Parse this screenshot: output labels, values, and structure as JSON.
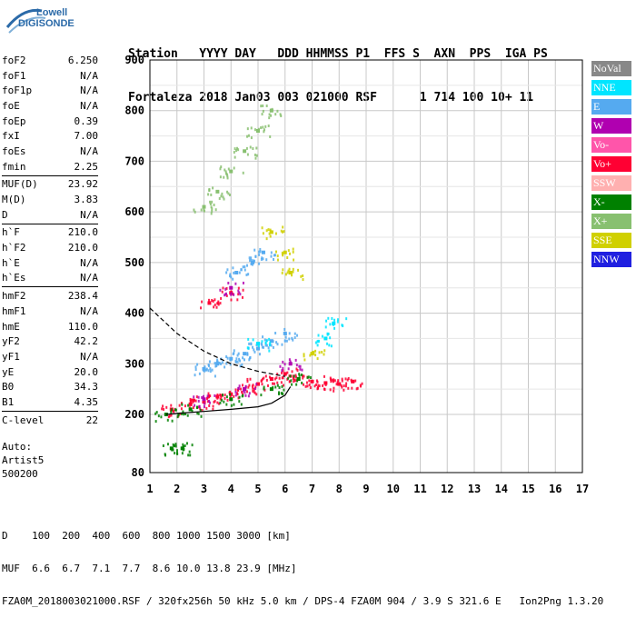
{
  "logo": {
    "line1": "Lowell",
    "line2": "DIGISONDE"
  },
  "header": {
    "line1": "Station   YYYY DAY   DDD HHMMSS P1  FFS S  AXN  PPS  IGA PS",
    "line2": "Fortaleza 2018 Jan03 003 021000 RSF      1 714 100 10+ 11"
  },
  "params": [
    {
      "label": "foF2",
      "value": "6.250"
    },
    {
      "label": "foF1",
      "value": "N/A"
    },
    {
      "label": "foF1p",
      "value": "N/A"
    },
    {
      "label": "foE",
      "value": "N/A"
    },
    {
      "label": "foEp",
      "value": "0.39"
    },
    {
      "label": "fxI",
      "value": "7.00"
    },
    {
      "label": "foEs",
      "value": "N/A"
    },
    {
      "label": "fmin",
      "value": "2.25"
    },
    {
      "sep": true
    },
    {
      "label": "MUF(D)",
      "value": "23.92"
    },
    {
      "label": "M(D)",
      "value": "3.83"
    },
    {
      "label": "D",
      "value": "N/A"
    },
    {
      "sep": true
    },
    {
      "label": "h`F",
      "value": "210.0"
    },
    {
      "label": "h`F2",
      "value": "210.0"
    },
    {
      "label": "h`E",
      "value": "N/A"
    },
    {
      "label": "h`Es",
      "value": "N/A"
    },
    {
      "sep": true
    },
    {
      "label": "hmF2",
      "value": "238.4"
    },
    {
      "label": "hmF1",
      "value": "N/A"
    },
    {
      "label": "hmE",
      "value": "110.0"
    },
    {
      "label": "yF2",
      "value": "42.2"
    },
    {
      "label": "yF1",
      "value": "N/A"
    },
    {
      "label": "yE",
      "value": "20.0"
    },
    {
      "label": "B0",
      "value": "34.3"
    },
    {
      "label": "B1",
      "value": "4.35"
    },
    {
      "sep": true
    },
    {
      "label": "C-level",
      "value": "22"
    }
  ],
  "auto": {
    "line1": "Auto:",
    "line2": "Artist5",
    "line3": "500200"
  },
  "legend": [
    {
      "label": "NoVal",
      "color": "#888888"
    },
    {
      "label": "NNE",
      "color": "#00e5ff"
    },
    {
      "label": "E",
      "color": "#55aaf0"
    },
    {
      "label": "W",
      "color": "#b000b0"
    },
    {
      "label": "Vo-",
      "color": "#ff55aa"
    },
    {
      "label": "Vo+",
      "color": "#ff0033"
    },
    {
      "label": "SSW",
      "color": "#ffb0b0"
    },
    {
      "label": "X-",
      "color": "#008000"
    },
    {
      "label": "X+",
      "color": "#88c070"
    },
    {
      "label": "SSE",
      "color": "#d0d000"
    },
    {
      "label": "NNW",
      "color": "#2020e0"
    }
  ],
  "footer": {
    "line1": "D    100  200  400  600  800 1000 1500 3000 [km]",
    "line2": "MUF  6.6  6.7  7.1  7.7  8.6 10.0 13.8 23.9 [MHz]",
    "line3": "FZA0M_2018003021000.RSF / 320fx256h 50 kHz 5.0 km / DPS-4 FZA0M 904 / 3.9 S 321.6 E   Ion2Png 1.3.20"
  },
  "chart_data": {
    "type": "scatter",
    "title": "",
    "xlabel": "",
    "ylabel": "",
    "xlim": [
      1,
      17
    ],
    "ylim": [
      80,
      900
    ],
    "x_ticks": [
      1,
      2,
      3,
      4,
      5,
      6,
      7,
      8,
      9,
      10,
      11,
      12,
      13,
      14,
      15,
      16,
      17
    ],
    "y_ticks": [
      80,
      200,
      300,
      400,
      500,
      600,
      700,
      800,
      900
    ],
    "grid": true,
    "legend_position": "right",
    "series": [
      {
        "name": "E",
        "color": "#55aaf0",
        "points": [
          [
            3.0,
            290
          ],
          [
            3.5,
            300
          ],
          [
            4.0,
            310
          ],
          [
            4.5,
            320
          ],
          [
            5.0,
            330
          ],
          [
            5.5,
            345
          ],
          [
            6.0,
            360
          ],
          [
            4.2,
            480
          ],
          [
            4.8,
            500
          ],
          [
            5.2,
            520
          ]
        ]
      },
      {
        "name": "Vo+",
        "color": "#ff0033",
        "points": [
          [
            1.8,
            210
          ],
          [
            2.5,
            220
          ],
          [
            3.0,
            225
          ],
          [
            3.5,
            235
          ],
          [
            4.0,
            240
          ],
          [
            4.5,
            250
          ],
          [
            5.0,
            260
          ],
          [
            5.5,
            270
          ],
          [
            6.0,
            280
          ],
          [
            6.5,
            270
          ],
          [
            7.0,
            265
          ],
          [
            7.5,
            262
          ],
          [
            8.0,
            260
          ],
          [
            8.5,
            265
          ],
          [
            3.2,
            420
          ],
          [
            4.0,
            440
          ]
        ]
      },
      {
        "name": "W",
        "color": "#b000b0",
        "points": [
          [
            3.0,
            230
          ],
          [
            4.5,
            250
          ],
          [
            6.2,
            300
          ],
          [
            4.0,
            450
          ]
        ]
      },
      {
        "name": "X-",
        "color": "#008000",
        "points": [
          [
            1.6,
            200
          ],
          [
            2.5,
            210
          ],
          [
            4.0,
            230
          ],
          [
            5.5,
            250
          ],
          [
            6.5,
            270
          ],
          [
            1.8,
            130
          ],
          [
            2.2,
            130
          ]
        ]
      },
      {
        "name": "X+",
        "color": "#88c070",
        "points": [
          [
            3.0,
            610
          ],
          [
            3.5,
            640
          ],
          [
            4.0,
            680
          ],
          [
            4.5,
            720
          ],
          [
            5.0,
            760
          ],
          [
            5.5,
            800
          ]
        ]
      },
      {
        "name": "SSE",
        "color": "#d0d000",
        "points": [
          [
            5.5,
            560
          ],
          [
            6.0,
            520
          ],
          [
            6.2,
            480
          ],
          [
            7.0,
            320
          ]
        ]
      },
      {
        "name": "NNE",
        "color": "#00e5ff",
        "points": [
          [
            7.5,
            350
          ],
          [
            7.8,
            380
          ],
          [
            5.0,
            340
          ]
        ]
      }
    ],
    "curves": [
      {
        "name": "dashed",
        "points": [
          [
            1.0,
            410
          ],
          [
            2.0,
            360
          ],
          [
            3.0,
            325
          ],
          [
            4.0,
            300
          ],
          [
            5.0,
            285
          ],
          [
            6.0,
            275
          ]
        ]
      },
      {
        "name": "profile",
        "points": [
          [
            1.6,
            200
          ],
          [
            2.0,
            202
          ],
          [
            3.0,
            206
          ],
          [
            4.0,
            210
          ],
          [
            5.0,
            215
          ],
          [
            5.5,
            222
          ],
          [
            6.0,
            238
          ],
          [
            6.2,
            255
          ]
        ]
      }
    ]
  }
}
